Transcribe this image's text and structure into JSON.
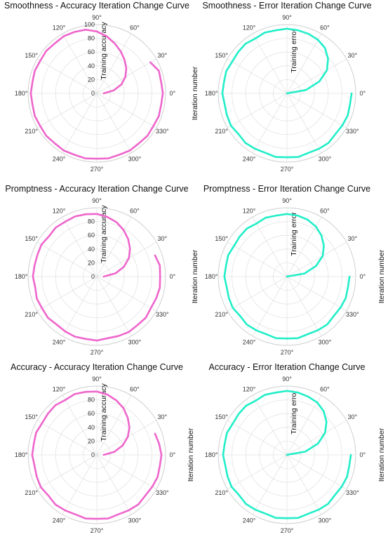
{
  "colors": {
    "accuracy": "#ee66cc",
    "error": "#22eec8"
  },
  "chart_data": [
    {
      "type": "line",
      "coordinate_system": "polar",
      "title": "Smoothness - Accuracy Iteration Change Curve",
      "radial_label": "Training accuracy",
      "ylabel": "",
      "rlim": [
        0,
        100
      ],
      "radial_ticks": [
        "0",
        "20",
        "40",
        "60",
        "80",
        "100"
      ],
      "angle_ticks": [
        "0°",
        "30°",
        "60°",
        "90°",
        "120°",
        "150°",
        "180°",
        "210°",
        "240°",
        "270°",
        "300°",
        "330°"
      ],
      "series": [
        {
          "color_key": "accuracy",
          "theta_deg": [
            0,
            10,
            20,
            30,
            40,
            50,
            60,
            70,
            80,
            90,
            100,
            110,
            120,
            130,
            140,
            150,
            160,
            170,
            180,
            190,
            200,
            210,
            220,
            230,
            240,
            250,
            260,
            270,
            280,
            290,
            300,
            310,
            320,
            330,
            340,
            350,
            360,
            370,
            380,
            390
          ],
          "r": [
            10,
            25,
            38,
            48,
            56,
            63,
            70,
            77,
            84,
            90,
            94,
            95,
            96,
            95,
            96,
            95,
            96,
            95,
            96,
            95,
            96,
            95,
            96,
            95,
            96,
            95,
            96,
            95,
            96,
            95,
            96,
            95,
            96,
            95,
            96,
            95,
            96,
            95,
            96,
            90
          ]
        }
      ]
    },
    {
      "type": "line",
      "coordinate_system": "polar",
      "title": "Smoothness - Error Iteration Change Curve",
      "radial_label": "Training error",
      "ylabel": "Iteration number",
      "rlim": [
        0,
        1
      ],
      "angle_ticks": [
        "0°",
        "30°",
        "60°",
        "90°",
        "120°",
        "150°",
        "180°",
        "210°",
        "240°",
        "270°",
        "300°",
        "330°"
      ],
      "series": [
        {
          "color_key": "error",
          "theta_deg": [
            0,
            10,
            20,
            30,
            40,
            50,
            60,
            70,
            80,
            90,
            100,
            110,
            120,
            130,
            140,
            150,
            160,
            170,
            180,
            190,
            200,
            210,
            220,
            230,
            240,
            250,
            260,
            270,
            280,
            290,
            300,
            310,
            320,
            330,
            340,
            350,
            360
          ],
          "r": [
            0,
            0.28,
            0.5,
            0.67,
            0.78,
            0.86,
            0.9,
            0.92,
            0.93,
            0.94,
            0.93,
            0.94,
            0.92,
            0.94,
            0.93,
            0.92,
            0.94,
            0.93,
            0.94,
            0.92,
            0.93,
            0.94,
            0.92,
            0.94,
            0.93,
            0.92,
            0.94,
            0.93,
            0.94,
            0.92,
            0.93,
            0.94,
            0.92,
            0.93,
            0.94,
            0.93,
            0.94
          ]
        }
      ]
    },
    {
      "type": "line",
      "coordinate_system": "polar",
      "title": "Promptness - Accuracy Iteration Change Curve",
      "radial_label": "Training accuracy",
      "ylabel": "Iteration number",
      "rlim": [
        0,
        100
      ],
      "radial_ticks": [
        "0",
        "20",
        "40",
        "60",
        "80"
      ],
      "angle_ticks": [
        "0°",
        "30°",
        "60°",
        "90°",
        "120°",
        "150°",
        "180°",
        "210°",
        "240°",
        "270°",
        "300°",
        "330°"
      ],
      "series": [
        {
          "color_key": "accuracy",
          "theta_deg": [
            0,
            10,
            20,
            30,
            40,
            50,
            60,
            70,
            80,
            90,
            100,
            110,
            120,
            130,
            140,
            150,
            160,
            170,
            180,
            190,
            200,
            210,
            220,
            230,
            240,
            250,
            260,
            270,
            280,
            290,
            300,
            310,
            320,
            330,
            340,
            350,
            360,
            370,
            380
          ],
          "r": [
            10,
            28,
            42,
            54,
            63,
            71,
            78,
            84,
            88,
            91,
            92,
            93,
            92,
            93,
            91,
            93,
            92,
            92,
            93,
            91,
            93,
            92,
            93,
            91,
            92,
            93,
            92,
            93,
            91,
            92,
            93,
            92,
            93,
            91,
            92,
            93,
            92,
            93,
            90
          ]
        }
      ]
    },
    {
      "type": "line",
      "coordinate_system": "polar",
      "title": "Promptness - Error Iteration Change Curve",
      "radial_label": "Training error",
      "ylabel": "Iteration number",
      "rlim": [
        0,
        1
      ],
      "angle_ticks": [
        "0°",
        "30°",
        "60°",
        "90°",
        "120°",
        "150°",
        "180°",
        "210°",
        "240°",
        "270°",
        "300°",
        "330°"
      ],
      "series": [
        {
          "color_key": "error",
          "theta_deg": [
            0,
            10,
            20,
            30,
            40,
            50,
            60,
            70,
            80,
            90,
            100,
            110,
            120,
            130,
            140,
            150,
            160,
            170,
            180,
            190,
            200,
            210,
            220,
            230,
            240,
            250,
            260,
            270,
            280,
            290,
            300,
            310,
            320,
            330,
            340,
            350,
            360
          ],
          "r": [
            0,
            0.26,
            0.45,
            0.6,
            0.7,
            0.78,
            0.84,
            0.88,
            0.9,
            0.91,
            0.9,
            0.91,
            0.89,
            0.91,
            0.9,
            0.89,
            0.91,
            0.9,
            0.91,
            0.89,
            0.9,
            0.91,
            0.89,
            0.91,
            0.9,
            0.89,
            0.91,
            0.9,
            0.91,
            0.89,
            0.9,
            0.91,
            0.89,
            0.9,
            0.91,
            0.9,
            0.91
          ]
        }
      ]
    },
    {
      "type": "line",
      "coordinate_system": "polar",
      "title": "Accuracy - Accuracy Iteration Change Curve",
      "radial_label": "Training accuracy",
      "ylabel": "Iteration number",
      "rlim": [
        0,
        100
      ],
      "radial_ticks": [
        "0",
        "20",
        "40",
        "60",
        "80"
      ],
      "angle_ticks": [
        "0°",
        "30°",
        "60°",
        "90°",
        "120°",
        "150°",
        "180°",
        "210°",
        "240°",
        "270°",
        "300°",
        "330°"
      ],
      "series": [
        {
          "color_key": "accuracy",
          "theta_deg": [
            0,
            10,
            20,
            30,
            40,
            50,
            60,
            70,
            80,
            90,
            100,
            110,
            120,
            130,
            140,
            150,
            160,
            170,
            180,
            190,
            200,
            210,
            220,
            230,
            240,
            250,
            260,
            270,
            280,
            290,
            300,
            310,
            320,
            330,
            340,
            350,
            360,
            370,
            380
          ],
          "r": [
            10,
            26,
            40,
            52,
            62,
            70,
            78,
            84,
            89,
            92,
            93,
            94,
            92,
            94,
            93,
            92,
            94,
            93,
            94,
            92,
            93,
            94,
            92,
            94,
            93,
            92,
            94,
            93,
            94,
            92,
            93,
            94,
            92,
            93,
            94,
            93,
            94,
            92,
            90
          ]
        }
      ]
    },
    {
      "type": "line",
      "coordinate_system": "polar",
      "title": "Accuracy - Error Iteration Change Curve",
      "radial_label": "Training error",
      "ylabel": "Iteration number",
      "rlim": [
        0,
        1
      ],
      "angle_ticks": [
        "0°",
        "30°",
        "60°",
        "90°",
        "120°",
        "150°",
        "180°",
        "210°",
        "240°",
        "270°",
        "300°",
        "330°"
      ],
      "series": [
        {
          "color_key": "error",
          "theta_deg": [
            0,
            10,
            20,
            30,
            40,
            50,
            60,
            70,
            80,
            90,
            100,
            110,
            120,
            130,
            140,
            150,
            160,
            170,
            180,
            190,
            200,
            210,
            220,
            230,
            240,
            250,
            260,
            270,
            280,
            290,
            300,
            310,
            320,
            330,
            340,
            350,
            360
          ],
          "r": [
            0,
            0.27,
            0.48,
            0.64,
            0.75,
            0.83,
            0.88,
            0.9,
            0.92,
            0.93,
            0.92,
            0.93,
            0.91,
            0.93,
            0.92,
            0.91,
            0.93,
            0.92,
            0.93,
            0.91,
            0.92,
            0.93,
            0.91,
            0.93,
            0.92,
            0.91,
            0.93,
            0.92,
            0.93,
            0.91,
            0.92,
            0.93,
            0.91,
            0.92,
            0.93,
            0.92,
            0.93
          ]
        }
      ]
    }
  ]
}
